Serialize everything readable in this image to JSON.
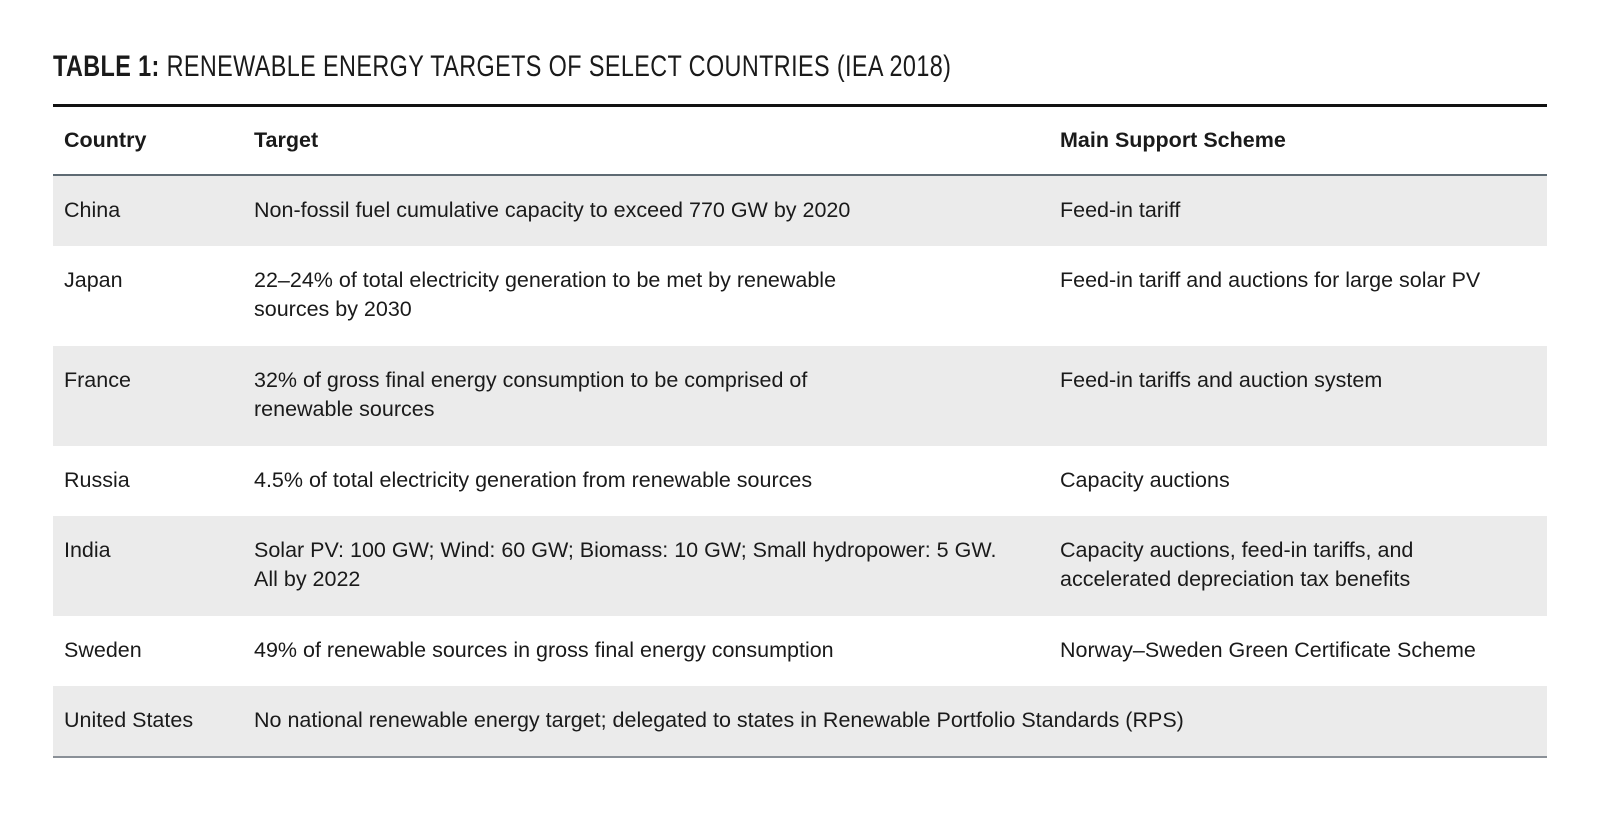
{
  "caption": {
    "lead": "TABLE 1:",
    "rest": " RENEWABLE ENERGY TARGETS OF SELECT COUNTRIES (IEA 2018)"
  },
  "table": {
    "headers": [
      "Country",
      "Target",
      "Main Support Scheme"
    ],
    "rows": [
      {
        "country": "China",
        "target": "Non-fossil fuel cumulative capacity to exceed 770 GW by 2020",
        "scheme": "Feed-in tariff"
      },
      {
        "country": "Japan",
        "target": "22–24% of total electricity generation to be met by renewable sources by 2030",
        "scheme": "Feed-in tariff and auctions for large solar PV"
      },
      {
        "country": "France",
        "target": "32% of gross final energy consumption to be comprised of renewable sources",
        "scheme": "Feed-in tariffs and auction system"
      },
      {
        "country": "Russia",
        "target": "4.5% of total electricity generation from renewable sources",
        "scheme": "Capacity auctions"
      },
      {
        "country": "India",
        "target": "Solar PV: 100 GW; Wind: 60 GW; Biomass: 10 GW; Small hydropower: 5 GW. All by 2022",
        "scheme": "Capacity auctions, feed-in tariffs, and accelerated depreciation tax benefits"
      },
      {
        "country": "Sweden",
        "target": "49% of renewable sources in gross final energy consumption",
        "scheme": "Norway–Sweden Green Certificate Scheme"
      },
      {
        "country": "United States",
        "target": "No national renewable energy target; delegated to states in Renewable Portfolio Standards (RPS)",
        "scheme": ""
      }
    ]
  }
}
